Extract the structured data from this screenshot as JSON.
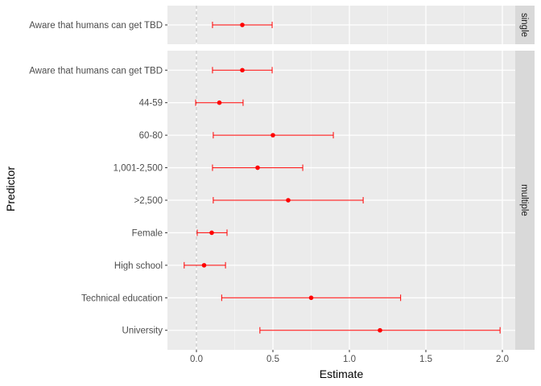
{
  "chart_data": {
    "type": "scatter",
    "subtype": "coefficient-plot-with-error-bars",
    "xlabel": "Estimate",
    "ylabel": "Predictor",
    "xlim": [
      -0.19,
      2.1
    ],
    "xticks": [
      0.0,
      0.5,
      1.0,
      1.5,
      2.0
    ],
    "xtick_labels": [
      "0.0",
      "0.5",
      "1.0",
      "1.5",
      "2.0"
    ],
    "reference_line": {
      "x": 0,
      "style": "dashed"
    },
    "grid": true,
    "point_color": "#ff0000",
    "facets": [
      {
        "name": "single",
        "rows": [
          {
            "predictor": "Aware that humans can get TBD",
            "estimate": 0.3,
            "lower": 0.105,
            "upper": 0.495
          }
        ]
      },
      {
        "name": "multiple",
        "rows": [
          {
            "predictor": "Aware that humans can get TBD",
            "estimate": 0.3,
            "lower": 0.105,
            "upper": 0.495
          },
          {
            "predictor": "44-59",
            "estimate": 0.15,
            "lower": -0.005,
            "upper": 0.305
          },
          {
            "predictor": "60-80",
            "estimate": 0.5,
            "lower": 0.11,
            "upper": 0.895
          },
          {
            "predictor": "1,001-2,500",
            "estimate": 0.4,
            "lower": 0.105,
            "upper": 0.695
          },
          {
            "predictor": ">2,500",
            "estimate": 0.6,
            "lower": 0.11,
            "upper": 1.09
          },
          {
            "predictor": "Female",
            "estimate": 0.1,
            "lower": 0.005,
            "upper": 0.2
          },
          {
            "predictor": "High school",
            "estimate": 0.05,
            "lower": -0.08,
            "upper": 0.19
          },
          {
            "predictor": "Technical education",
            "estimate": 0.75,
            "lower": 0.165,
            "upper": 1.335
          },
          {
            "predictor": "University",
            "estimate": 1.2,
            "lower": 0.415,
            "upper": 1.985
          }
        ]
      }
    ]
  }
}
